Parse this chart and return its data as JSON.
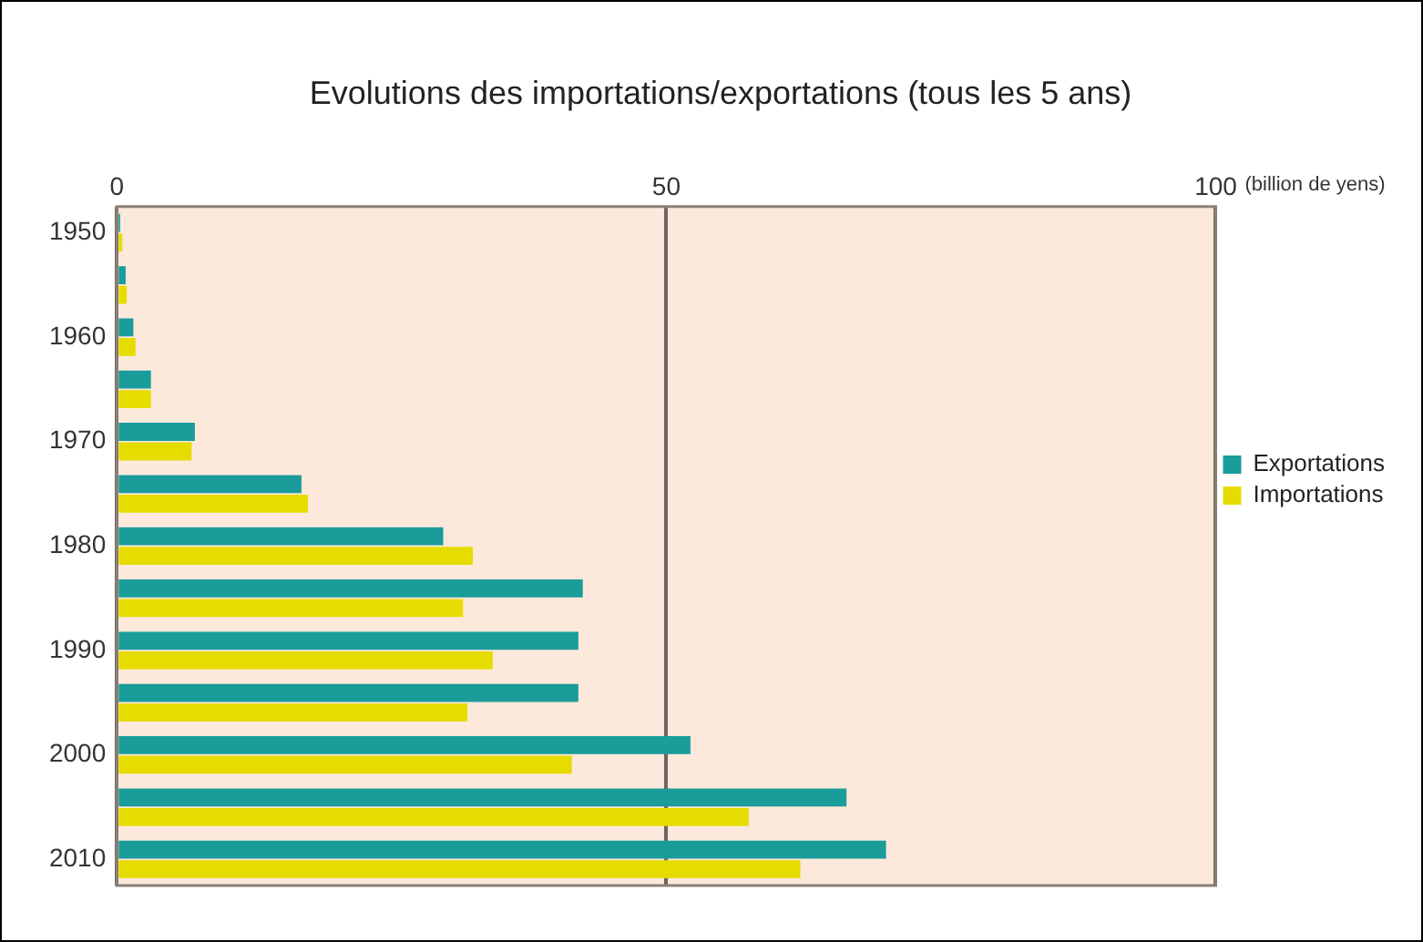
{
  "chart_data": {
    "type": "bar",
    "orientation": "horizontal",
    "title": "Evolutions des importations/exportations (tous les 5 ans)",
    "xlabel": "(billion de yens)",
    "categories": [
      "1950",
      null,
      "1960",
      null,
      "1970",
      null,
      "1980",
      null,
      "1990",
      null,
      "2000",
      null,
      "2010"
    ],
    "series": [
      {
        "name": "Exportations",
        "color": "#1a9c9a",
        "values": [
          0.3,
          0.8,
          1.5,
          3.1,
          7.1,
          16.8,
          29.7,
          42.4,
          42.0,
          42.0,
          52.2,
          66.4,
          70.0
        ]
      },
      {
        "name": "Importations",
        "color": "#e6dc00",
        "values": [
          0.5,
          0.9,
          1.7,
          3.1,
          6.8,
          17.4,
          32.4,
          31.5,
          34.2,
          31.9,
          41.4,
          57.5,
          62.2
        ]
      }
    ],
    "xlim": [
      0,
      100
    ],
    "xticks": [
      0,
      50,
      100
    ],
    "grid": "x",
    "legend": "right"
  }
}
